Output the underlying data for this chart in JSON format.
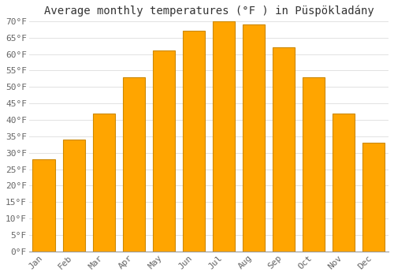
{
  "title": "Average monthly temperatures (°F ) in Püspökladány",
  "months": [
    "Jan",
    "Feb",
    "Mar",
    "Apr",
    "May",
    "Jun",
    "Jul",
    "Aug",
    "Sep",
    "Oct",
    "Nov",
    "Dec"
  ],
  "values": [
    28,
    34,
    42,
    53,
    61,
    67,
    70,
    69,
    62,
    53,
    42,
    33
  ],
  "bar_color": "#FFA500",
  "bar_edge_color": "#CC8800",
  "background_color": "#FFFFFF",
  "grid_color": "#DDDDDD",
  "ylim": [
    0,
    70
  ],
  "ytick_step": 5,
  "title_fontsize": 10,
  "tick_fontsize": 8,
  "font_family": "monospace"
}
